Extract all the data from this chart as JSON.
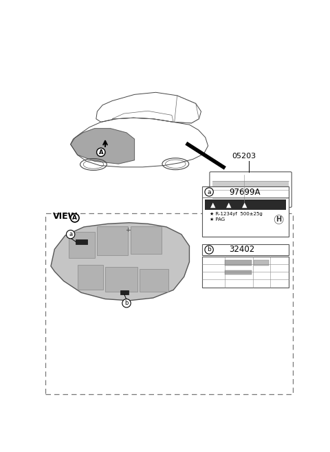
{
  "bg_color": "#ffffff",
  "part_number_top": "05203",
  "part_number_a": "97699A",
  "part_number_b": "32402",
  "view_label": "VIEW",
  "circle_A_label": "A",
  "label_a": "a",
  "label_b": "b",
  "refrigerant_line1": "R-1234yf  500±25g",
  "refrigerant_line2": "PAG",
  "dark_band_color": "#2a2a2a",
  "gray_fill": "#c5c5c5",
  "gray_rib": "#b2b2b2",
  "line_color": "#444444",
  "box_border": "#555555",
  "dashed_border": "#777777",
  "car_body_color": "#444444",
  "hood_fill": "#8a8a8a"
}
